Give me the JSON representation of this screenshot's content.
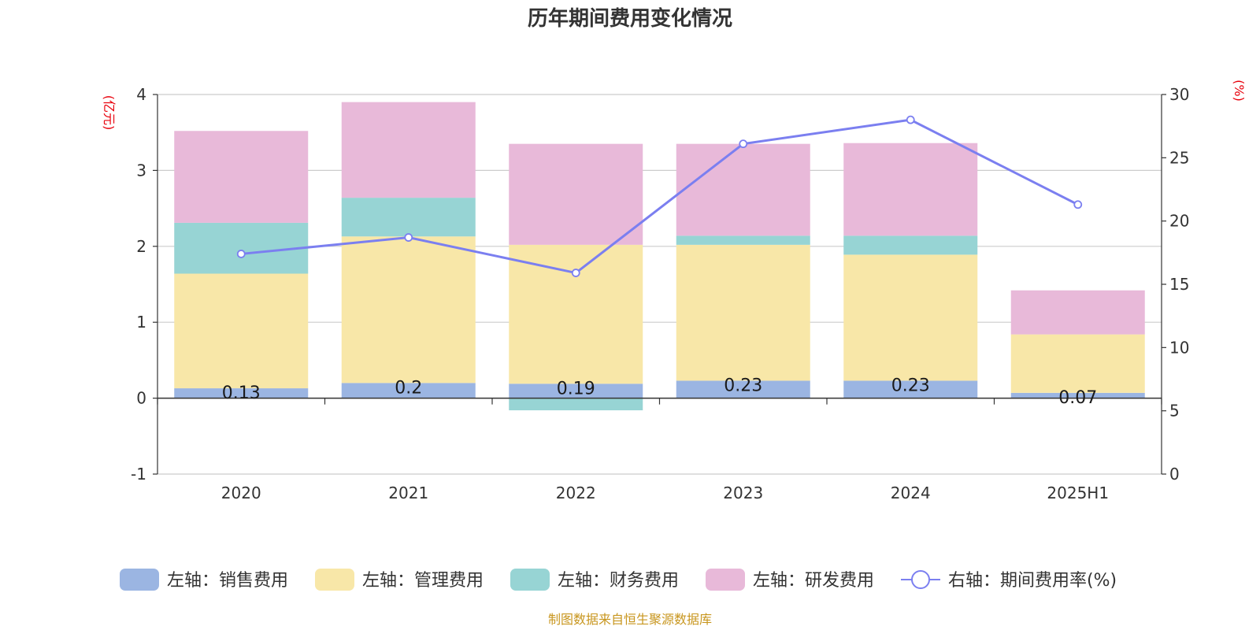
{
  "chart_data": {
    "type": "bar",
    "stacked": true,
    "title": "历年期间费用变化情况",
    "left_unit": "(亿元)",
    "right_unit": "(%)",
    "categories": [
      "2020",
      "2021",
      "2022",
      "2023",
      "2024",
      "2025H1"
    ],
    "left_axis": {
      "ylim": [
        -1,
        4
      ],
      "ticks": [
        "-1",
        "0",
        "1",
        "2",
        "3",
        "4"
      ]
    },
    "right_axis": {
      "ylim": [
        0,
        30
      ],
      "ticks": [
        "0",
        "5",
        "10",
        "15",
        "20",
        "25",
        "30"
      ]
    },
    "grid": true,
    "series": [
      {
        "name": "左轴：销售费用",
        "axis": "left",
        "color": "#9bb5e2",
        "values": [
          0.13,
          0.2,
          0.19,
          0.23,
          0.23,
          0.07
        ],
        "data_labels": [
          "0.13",
          "0.2",
          "0.19",
          "0.23",
          "0.23",
          "0.07"
        ]
      },
      {
        "name": "左轴：管理费用",
        "axis": "left",
        "color": "#f8e7a8",
        "values": [
          1.51,
          1.93,
          1.83,
          1.79,
          1.66,
          0.77
        ]
      },
      {
        "name": "左轴：财务费用",
        "axis": "left",
        "color": "#97d4d4",
        "values": [
          0.67,
          0.51,
          -0.16,
          0.12,
          0.25,
          0
        ]
      },
      {
        "name": "左轴：研发费用",
        "axis": "left",
        "color": "#e8b9d9",
        "values": [
          1.21,
          1.26,
          1.33,
          1.21,
          1.22,
          0.58
        ]
      },
      {
        "name": "右轴：期间费用率(%)",
        "axis": "right",
        "type": "line",
        "color": "#7b7ff0",
        "values": [
          17.4,
          18.7,
          15.9,
          26.1,
          28.0,
          21.3
        ]
      }
    ],
    "legend_position": "bottom"
  },
  "source_note": "制图数据来自恒生聚源数据库"
}
